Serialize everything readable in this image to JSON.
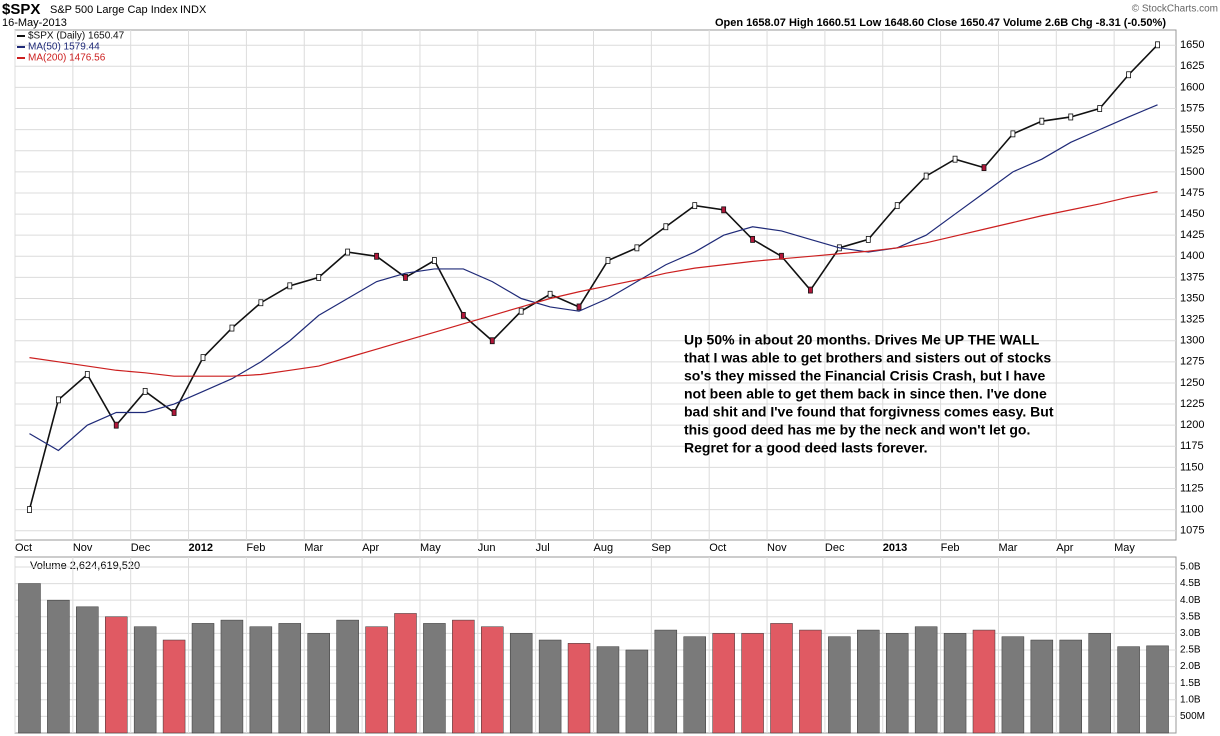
{
  "chart_data": {
    "type": "line",
    "title": "$SPX",
    "subtitle": "S&P 500 Large Cap Index",
    "exchange": "INDX",
    "date": "16-May-2013",
    "quote": "Open 1658.07 High 1660.51 Low 1648.60 Close 1650.47 Volume 2.6B Chg -8.31 (-0.50%)",
    "credit": "© StockCharts.com",
    "categories": [
      "Oct",
      null,
      "Nov",
      null,
      "Dec",
      null,
      "2012",
      null,
      "Feb",
      null,
      "Mar",
      null,
      "Apr",
      null,
      "May",
      null,
      "Jun",
      null,
      "Jul",
      null,
      "Aug",
      null,
      "Sep",
      null,
      "Oct",
      null,
      "Nov",
      null,
      "Dec",
      null,
      "2013",
      null,
      "Feb",
      null,
      "Mar",
      null,
      "Apr",
      null,
      "May",
      null
    ],
    "series": [
      {
        "name": "$SPX (Daily) 1650.47",
        "color": "#111111",
        "values": [
          1100,
          1230,
          1260,
          1200,
          1240,
          1215,
          1280,
          1315,
          1345,
          1365,
          1375,
          1405,
          1400,
          1375,
          1395,
          1330,
          1300,
          1335,
          1355,
          1340,
          1395,
          1410,
          1435,
          1460,
          1455,
          1420,
          1400,
          1360,
          1410,
          1420,
          1460,
          1495,
          1515,
          1505,
          1545,
          1560,
          1565,
          1575,
          1615,
          1650.47
        ]
      },
      {
        "name": "MA(50) 1579.44",
        "color": "#1f2a78",
        "values": [
          1190,
          1170,
          1200,
          1215,
          1215,
          1225,
          1240,
          1255,
          1275,
          1300,
          1330,
          1350,
          1370,
          1380,
          1385,
          1385,
          1370,
          1350,
          1340,
          1335,
          1350,
          1370,
          1390,
          1405,
          1425,
          1435,
          1430,
          1420,
          1410,
          1405,
          1410,
          1425,
          1450,
          1475,
          1500,
          1515,
          1535,
          1550,
          1565,
          1579.44
        ]
      },
      {
        "name": "MA(200) 1476.56",
        "color": "#cc1f1f",
        "values": [
          1280,
          1275,
          1270,
          1265,
          1262,
          1258,
          1258,
          1258,
          1260,
          1265,
          1270,
          1280,
          1290,
          1300,
          1310,
          1320,
          1330,
          1340,
          1350,
          1358,
          1365,
          1372,
          1380,
          1386,
          1390,
          1394,
          1397,
          1400,
          1403,
          1406,
          1410,
          1416,
          1424,
          1432,
          1440,
          1448,
          1455,
          1462,
          1470,
          1476.56
        ]
      }
    ],
    "ylim": [
      1064,
      1668
    ],
    "yticks": [
      1075,
      1100,
      1125,
      1150,
      1175,
      1200,
      1225,
      1250,
      1275,
      1300,
      1325,
      1350,
      1375,
      1400,
      1425,
      1450,
      1475,
      1500,
      1525,
      1550,
      1575,
      1600,
      1625,
      1650
    ],
    "grid": true,
    "up_color": "#7a7a7a",
    "down_color": "#e05a63",
    "annotation": [
      "Up 50% in about 20 months.  Drives Me UP THE WALL",
      "that I was able to get brothers and sisters out of stocks",
      "so's they missed the Financial Crisis Crash, but I have",
      "not been able to get them back in since then.   I've done",
      "bad shit and I've found that forgivness comes easy. But",
      "this good deed has me by the neck and won't let go.",
      "Regret  for a good deed lasts forever."
    ],
    "volume": {
      "type": "bar",
      "name": "Volume 2,624,619,520",
      "values": [
        4500000000,
        4000000000,
        3800000000,
        3500000000,
        3200000000,
        2800000000,
        3300000000,
        3400000000,
        3200000000,
        3300000000,
        3000000000,
        3400000000,
        3200000000,
        3600000000,
        3300000000,
        3400000000,
        3200000000,
        3000000000,
        2800000000,
        2700000000,
        2600000000,
        2500000000,
        3100000000,
        2900000000,
        3000000000,
        3000000000,
        3300000000,
        3100000000,
        2900000000,
        3100000000,
        3000000000,
        3200000000,
        3000000000,
        3100000000,
        2900000000,
        2800000000,
        2800000000,
        3000000000,
        2600000000,
        2624619520
      ],
      "ylim": [
        0,
        5300000000
      ],
      "yticks": [
        {
          "value": 500000000,
          "label": "500M"
        },
        {
          "value": 1000000000,
          "label": "1.0B"
        },
        {
          "value": 1500000000,
          "label": "1.5B"
        },
        {
          "value": 2000000000,
          "label": "2.0B"
        },
        {
          "value": 2500000000,
          "label": "2.5B"
        },
        {
          "value": 3000000000,
          "label": "3.0B"
        },
        {
          "value": 3500000000,
          "label": "3.5B"
        },
        {
          "value": 4000000000,
          "label": "4.0B"
        },
        {
          "value": 4500000000,
          "label": "4.5B"
        },
        {
          "value": 5000000000,
          "label": "5.0B"
        }
      ]
    }
  }
}
